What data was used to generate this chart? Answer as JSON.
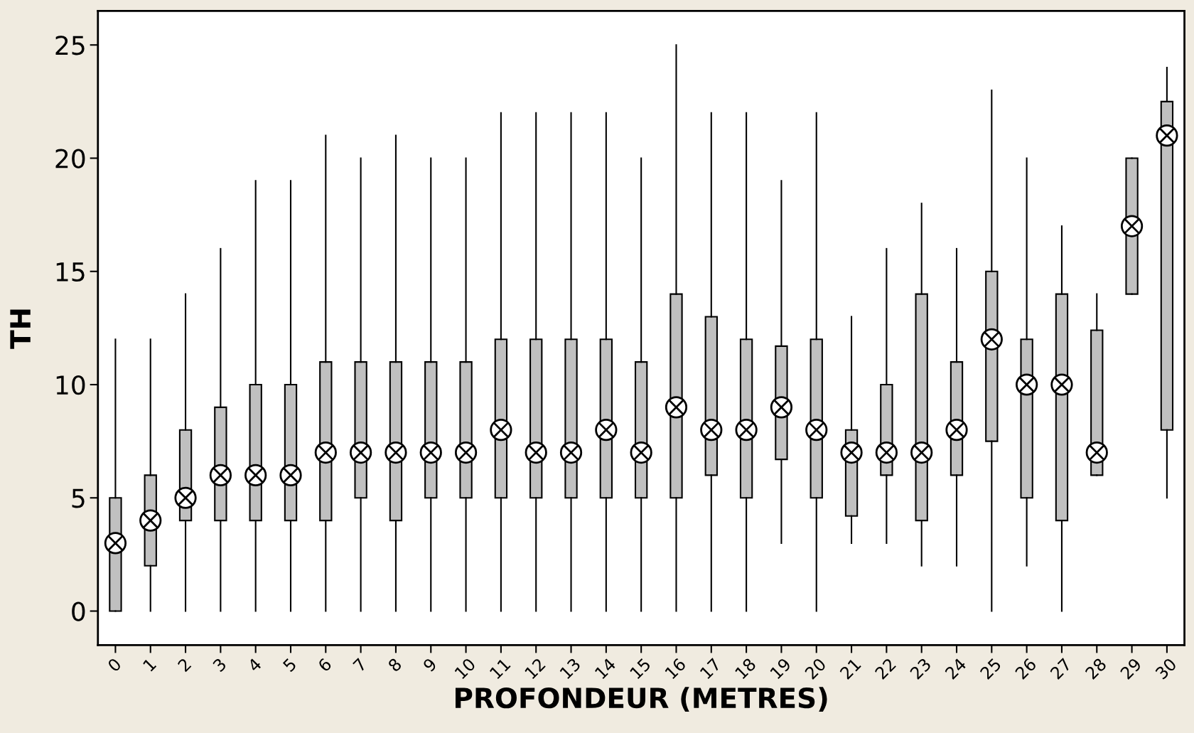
{
  "chart_data": {
    "type": "box",
    "xlabel": "PROFONDEUR (METRES)",
    "ylabel": "TH",
    "categories": [
      "0",
      "1",
      "2",
      "3",
      "4",
      "5",
      "6",
      "7",
      "8",
      "9",
      "10",
      "11",
      "12",
      "13",
      "14",
      "15",
      "16",
      "17",
      "18",
      "19",
      "20",
      "21",
      "22",
      "23",
      "24",
      "25",
      "26",
      "27",
      "28",
      "29",
      "30"
    ],
    "color": "#c0c0c0",
    "ylim": [
      -1.5,
      26.5
    ],
    "yticks": [
      0,
      5,
      10,
      15,
      20,
      25
    ],
    "grid": false,
    "boxes": [
      {
        "low": 0,
        "q1": 0,
        "median": 3,
        "q3": 5,
        "high": 12
      },
      {
        "low": 0,
        "q1": 2,
        "median": 4,
        "q3": 6,
        "high": 12
      },
      {
        "low": 0,
        "q1": 4,
        "median": 5,
        "q3": 8,
        "high": 14
      },
      {
        "low": 0,
        "q1": 4,
        "median": 6,
        "q3": 9,
        "high": 16
      },
      {
        "low": 0,
        "q1": 4,
        "median": 6,
        "q3": 10,
        "high": 19
      },
      {
        "low": 0,
        "q1": 4,
        "median": 6,
        "q3": 10,
        "high": 19
      },
      {
        "low": 0,
        "q1": 4,
        "median": 7,
        "q3": 11,
        "high": 21
      },
      {
        "low": 0,
        "q1": 5,
        "median": 7,
        "q3": 11,
        "high": 20
      },
      {
        "low": 0,
        "q1": 4,
        "median": 7,
        "q3": 11,
        "high": 21
      },
      {
        "low": 0,
        "q1": 5,
        "median": 7,
        "q3": 11,
        "high": 20
      },
      {
        "low": 0,
        "q1": 5,
        "median": 7,
        "q3": 11,
        "high": 20
      },
      {
        "low": 0,
        "q1": 5,
        "median": 8,
        "q3": 12,
        "high": 22
      },
      {
        "low": 0,
        "q1": 5,
        "median": 7,
        "q3": 12,
        "high": 22
      },
      {
        "low": 0,
        "q1": 5,
        "median": 7,
        "q3": 12,
        "high": 22
      },
      {
        "low": 0,
        "q1": 5,
        "median": 8,
        "q3": 12,
        "high": 22
      },
      {
        "low": 0,
        "q1": 5,
        "median": 7,
        "q3": 11,
        "high": 20
      },
      {
        "low": 0,
        "q1": 5,
        "median": 9,
        "q3": 14,
        "high": 25
      },
      {
        "low": 0,
        "q1": 6,
        "median": 8,
        "q3": 13,
        "high": 22
      },
      {
        "low": 0,
        "q1": 5,
        "median": 8,
        "q3": 12,
        "high": 22
      },
      {
        "low": 3,
        "q1": 6.7,
        "median": 9,
        "q3": 11.7,
        "high": 19
      },
      {
        "low": 0,
        "q1": 5,
        "median": 8,
        "q3": 12,
        "high": 22
      },
      {
        "low": 3,
        "q1": 4.2,
        "median": 7,
        "q3": 8,
        "high": 13
      },
      {
        "low": 3,
        "q1": 6,
        "median": 7,
        "q3": 10,
        "high": 16
      },
      {
        "low": 2,
        "q1": 4,
        "median": 7,
        "q3": 14,
        "high": 18
      },
      {
        "low": 2,
        "q1": 6,
        "median": 8,
        "q3": 11,
        "high": 16
      },
      {
        "low": 0,
        "q1": 7.5,
        "median": 12,
        "q3": 15,
        "high": 23
      },
      {
        "low": 2,
        "q1": 5,
        "median": 10,
        "q3": 12,
        "high": 20
      },
      {
        "low": 0,
        "q1": 4,
        "median": 10,
        "q3": 14,
        "high": 17
      },
      {
        "low": 6,
        "q1": 6,
        "median": 7,
        "q3": 12.4,
        "high": 14
      },
      {
        "low": 14,
        "q1": 14,
        "median": 17,
        "q3": 20,
        "high": 20
      },
      {
        "low": 5,
        "q1": 8,
        "median": 21,
        "q3": 22.5,
        "high": 24
      }
    ]
  }
}
